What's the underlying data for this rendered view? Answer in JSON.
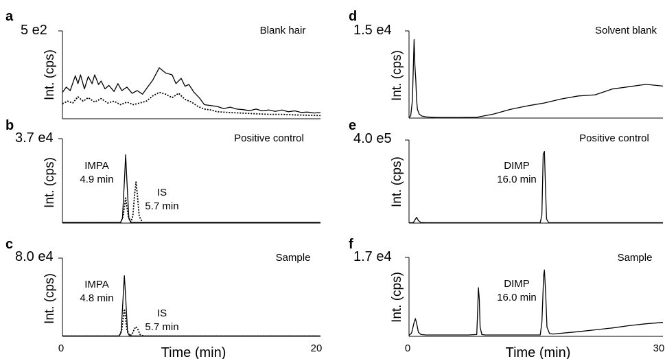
{
  "chart_data": [
    {
      "type": "line",
      "panel_label": "a",
      "title": "Blank hair",
      "ylabel": "Int. (cps)",
      "ymax_label": "5 e2",
      "ylim": [
        0,
        500
      ],
      "xlim": [
        0,
        20
      ],
      "series": [
        {
          "style": "solid",
          "x": [
            0,
            0.3,
            0.6,
            1.0,
            1.2,
            1.4,
            1.7,
            2.0,
            2.3,
            2.5,
            2.8,
            3.0,
            3.3,
            3.6,
            4.0,
            4.3,
            4.6,
            5.0,
            5.4,
            5.8,
            6.2,
            6.6,
            7.0,
            7.5,
            8.0,
            8.5,
            8.8,
            9.2,
            9.5,
            9.8,
            10.2,
            10.6,
            11.0,
            11.5,
            12.0,
            12.5,
            13.0,
            13.5,
            14.0,
            14.5,
            15.0,
            15.5,
            16.0,
            16.5,
            17.0,
            17.5,
            18.0,
            18.5,
            19.0,
            19.5,
            20.0
          ],
          "y": [
            150,
            180,
            160,
            245,
            200,
            250,
            170,
            240,
            200,
            250,
            195,
            215,
            170,
            190,
            155,
            200,
            160,
            180,
            145,
            160,
            140,
            180,
            220,
            290,
            260,
            250,
            200,
            230,
            185,
            195,
            150,
            120,
            80,
            75,
            70,
            58,
            66,
            55,
            52,
            46,
            55,
            45,
            50,
            42,
            50,
            40,
            45,
            36,
            38,
            33,
            35
          ]
        },
        {
          "style": "dotted",
          "x": [
            0,
            0.4,
            0.8,
            1.2,
            1.6,
            2.0,
            2.5,
            3.0,
            3.5,
            4.0,
            4.5,
            5.0,
            5.5,
            6.0,
            6.5,
            7.0,
            7.5,
            8.0,
            8.5,
            9.0,
            9.5,
            10.0,
            10.5,
            11.0,
            11.5,
            12.0,
            13.0,
            14.0,
            15.0,
            16.0,
            17.0,
            18.0,
            19.0,
            20.0
          ],
          "y": [
            85,
            100,
            90,
            125,
            100,
            120,
            95,
            115,
            90,
            100,
            80,
            95,
            80,
            90,
            100,
            130,
            150,
            140,
            120,
            145,
            110,
            95,
            70,
            55,
            50,
            40,
            35,
            32,
            28,
            25,
            25,
            22,
            20,
            18
          ]
        }
      ]
    },
    {
      "type": "line",
      "panel_label": "b",
      "title": "Positive control",
      "ylabel": "Int. (cps)",
      "ymax_label": "3.7 e4",
      "ylim": [
        0,
        37000
      ],
      "xlim": [
        0,
        20
      ],
      "annotations": [
        {
          "lines": [
            "IMPA",
            "4.9 min"
          ]
        },
        {
          "lines": [
            "IS",
            "5.7 min"
          ]
        }
      ],
      "series": [
        {
          "style": "solid",
          "x": [
            0,
            4.5,
            4.65,
            4.8,
            4.9,
            5.0,
            5.15,
            5.3,
            20
          ],
          "y": [
            300,
            300,
            2000,
            18000,
            30000,
            18000,
            2000,
            300,
            300
          ]
        },
        {
          "style": "dotted",
          "x": [
            0,
            4.5,
            4.7,
            4.9,
            5.1,
            5.3,
            5.45,
            5.6,
            5.7,
            5.8,
            5.95,
            6.2,
            20
          ],
          "y": [
            200,
            200,
            3000,
            11000,
            3000,
            500,
            3000,
            13000,
            18000,
            13000,
            3000,
            200,
            200
          ]
        }
      ]
    },
    {
      "type": "line",
      "panel_label": "c",
      "title": "Sample",
      "ylabel": "Int. (cps)",
      "ymax_label": "8.0 e4",
      "ylim": [
        0,
        80000
      ],
      "xlim": [
        0,
        20
      ],
      "xticks": [
        "0",
        "20"
      ],
      "xlabel": "Time (min)",
      "annotations": [
        {
          "lines": [
            "IMPA",
            "4.8 min"
          ]
        },
        {
          "lines": [
            "IS",
            "5.7 min"
          ]
        }
      ],
      "series": [
        {
          "style": "solid",
          "x": [
            0,
            4.4,
            4.55,
            4.7,
            4.8,
            4.9,
            5.05,
            5.2,
            20
          ],
          "y": [
            400,
            400,
            4000,
            40000,
            62000,
            40000,
            4000,
            400,
            400
          ]
        },
        {
          "style": "dotted",
          "x": [
            0,
            4.4,
            4.6,
            4.8,
            5.0,
            5.2,
            5.4,
            5.55,
            5.7,
            5.85,
            6.0,
            6.3,
            20
          ],
          "y": [
            300,
            300,
            7000,
            28000,
            7000,
            800,
            2000,
            7000,
            10000,
            7000,
            2000,
            300,
            300
          ]
        }
      ]
    },
    {
      "type": "line",
      "panel_label": "d",
      "title": "Solvent blank",
      "ylabel": "Int. (cps)",
      "ymax_label": "1.5 e4",
      "ylim": [
        0,
        15000
      ],
      "xlim": [
        0,
        30
      ],
      "series": [
        {
          "style": "solid",
          "x": [
            0,
            0.2,
            0.4,
            0.6,
            0.7,
            0.8,
            0.9,
            1.0,
            1.2,
            1.5,
            2.0,
            3.0,
            4.0,
            6.0,
            8.0,
            10.0,
            12.0,
            14.0,
            16.0,
            18.0,
            20.0,
            22.0,
            24.0,
            26.0,
            28.0,
            30.0
          ],
          "y": [
            100,
            400,
            3000,
            13500,
            9000,
            6500,
            3000,
            1500,
            700,
            350,
            200,
            120,
            110,
            110,
            130,
            700,
            1500,
            2100,
            2600,
            3300,
            3800,
            4000,
            5000,
            5400,
            5800,
            5500
          ]
        }
      ]
    },
    {
      "type": "line",
      "panel_label": "e",
      "title": "Positive control",
      "ylabel": "Int. (cps)",
      "ymax_label": "4.0 e5",
      "ylim": [
        0,
        400000
      ],
      "xlim": [
        0,
        30
      ],
      "annotations": [
        {
          "lines": [
            "DIMP",
            "16.0 min"
          ]
        }
      ],
      "series": [
        {
          "style": "solid",
          "x": [
            0,
            0.5,
            0.7,
            0.9,
            1.1,
            1.4,
            2.0,
            15.5,
            15.7,
            15.85,
            16.0,
            16.1,
            16.25,
            16.5,
            30
          ],
          "y": [
            2000,
            2000,
            15000,
            28000,
            12000,
            3000,
            2000,
            2000,
            40000,
            330000,
            345000,
            200000,
            20000,
            2000,
            2000
          ]
        }
      ]
    },
    {
      "type": "line",
      "panel_label": "f",
      "title": "Sample",
      "ylabel": "Int. (cps)",
      "ymax_label": "1.7 e4",
      "ylim": [
        0,
        17000
      ],
      "xlim": [
        0,
        30
      ],
      "xticks": [
        "0",
        "30"
      ],
      "xlabel": "Time (min)",
      "annotations": [
        {
          "lines": [
            "DIMP",
            "16.0 min"
          ]
        }
      ],
      "series": [
        {
          "style": "solid",
          "x": [
            0,
            0.3,
            0.6,
            0.75,
            0.9,
            1.1,
            1.4,
            2.0,
            3.0,
            5.0,
            7.0,
            8.0,
            8.1,
            8.2,
            8.3,
            8.4,
            8.6,
            9.0,
            12.0,
            15.5,
            15.7,
            15.8,
            15.9,
            16.0,
            16.15,
            16.3,
            16.6,
            17.0,
            20.0,
            22.0,
            24.0,
            26.0,
            28.0,
            30.0
          ],
          "y": [
            200,
            700,
            3000,
            3800,
            2800,
            900,
            400,
            300,
            300,
            300,
            300,
            400,
            5000,
            10500,
            8000,
            2000,
            400,
            300,
            300,
            300,
            3000,
            8000,
            13000,
            14300,
            9000,
            2000,
            600,
            500,
            1000,
            1400,
            1800,
            2300,
            2700,
            3000
          ]
        }
      ]
    }
  ]
}
